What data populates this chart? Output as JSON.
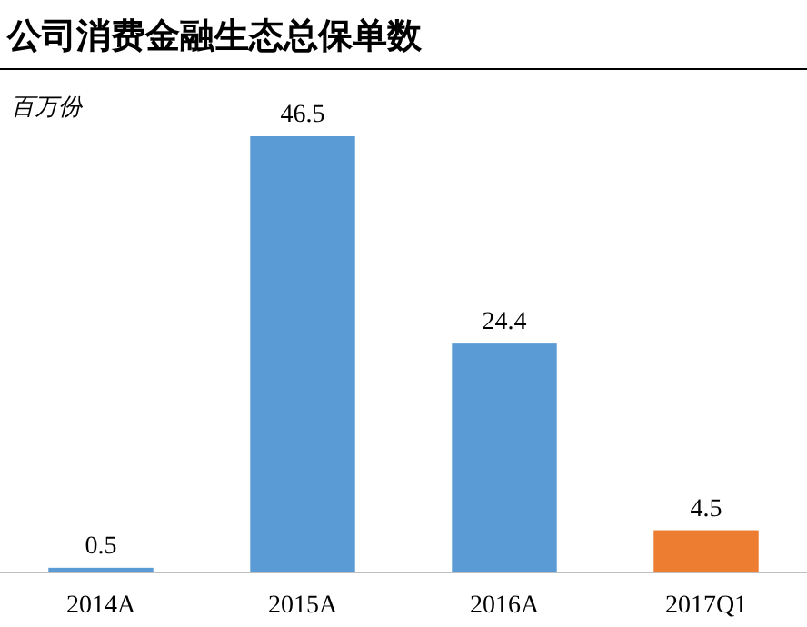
{
  "chart_data": {
    "type": "bar",
    "title": "公司消费金融生态总保单数",
    "ylabel": "百万份",
    "categories": [
      "2014A",
      "2015A",
      "2016A",
      "2017Q1"
    ],
    "values": [
      0.5,
      46.5,
      24.4,
      4.5
    ],
    "colors": [
      "#5b9bd5",
      "#5b9bd5",
      "#5b9bd5",
      "#ed7d31"
    ],
    "data_labels": true
  }
}
